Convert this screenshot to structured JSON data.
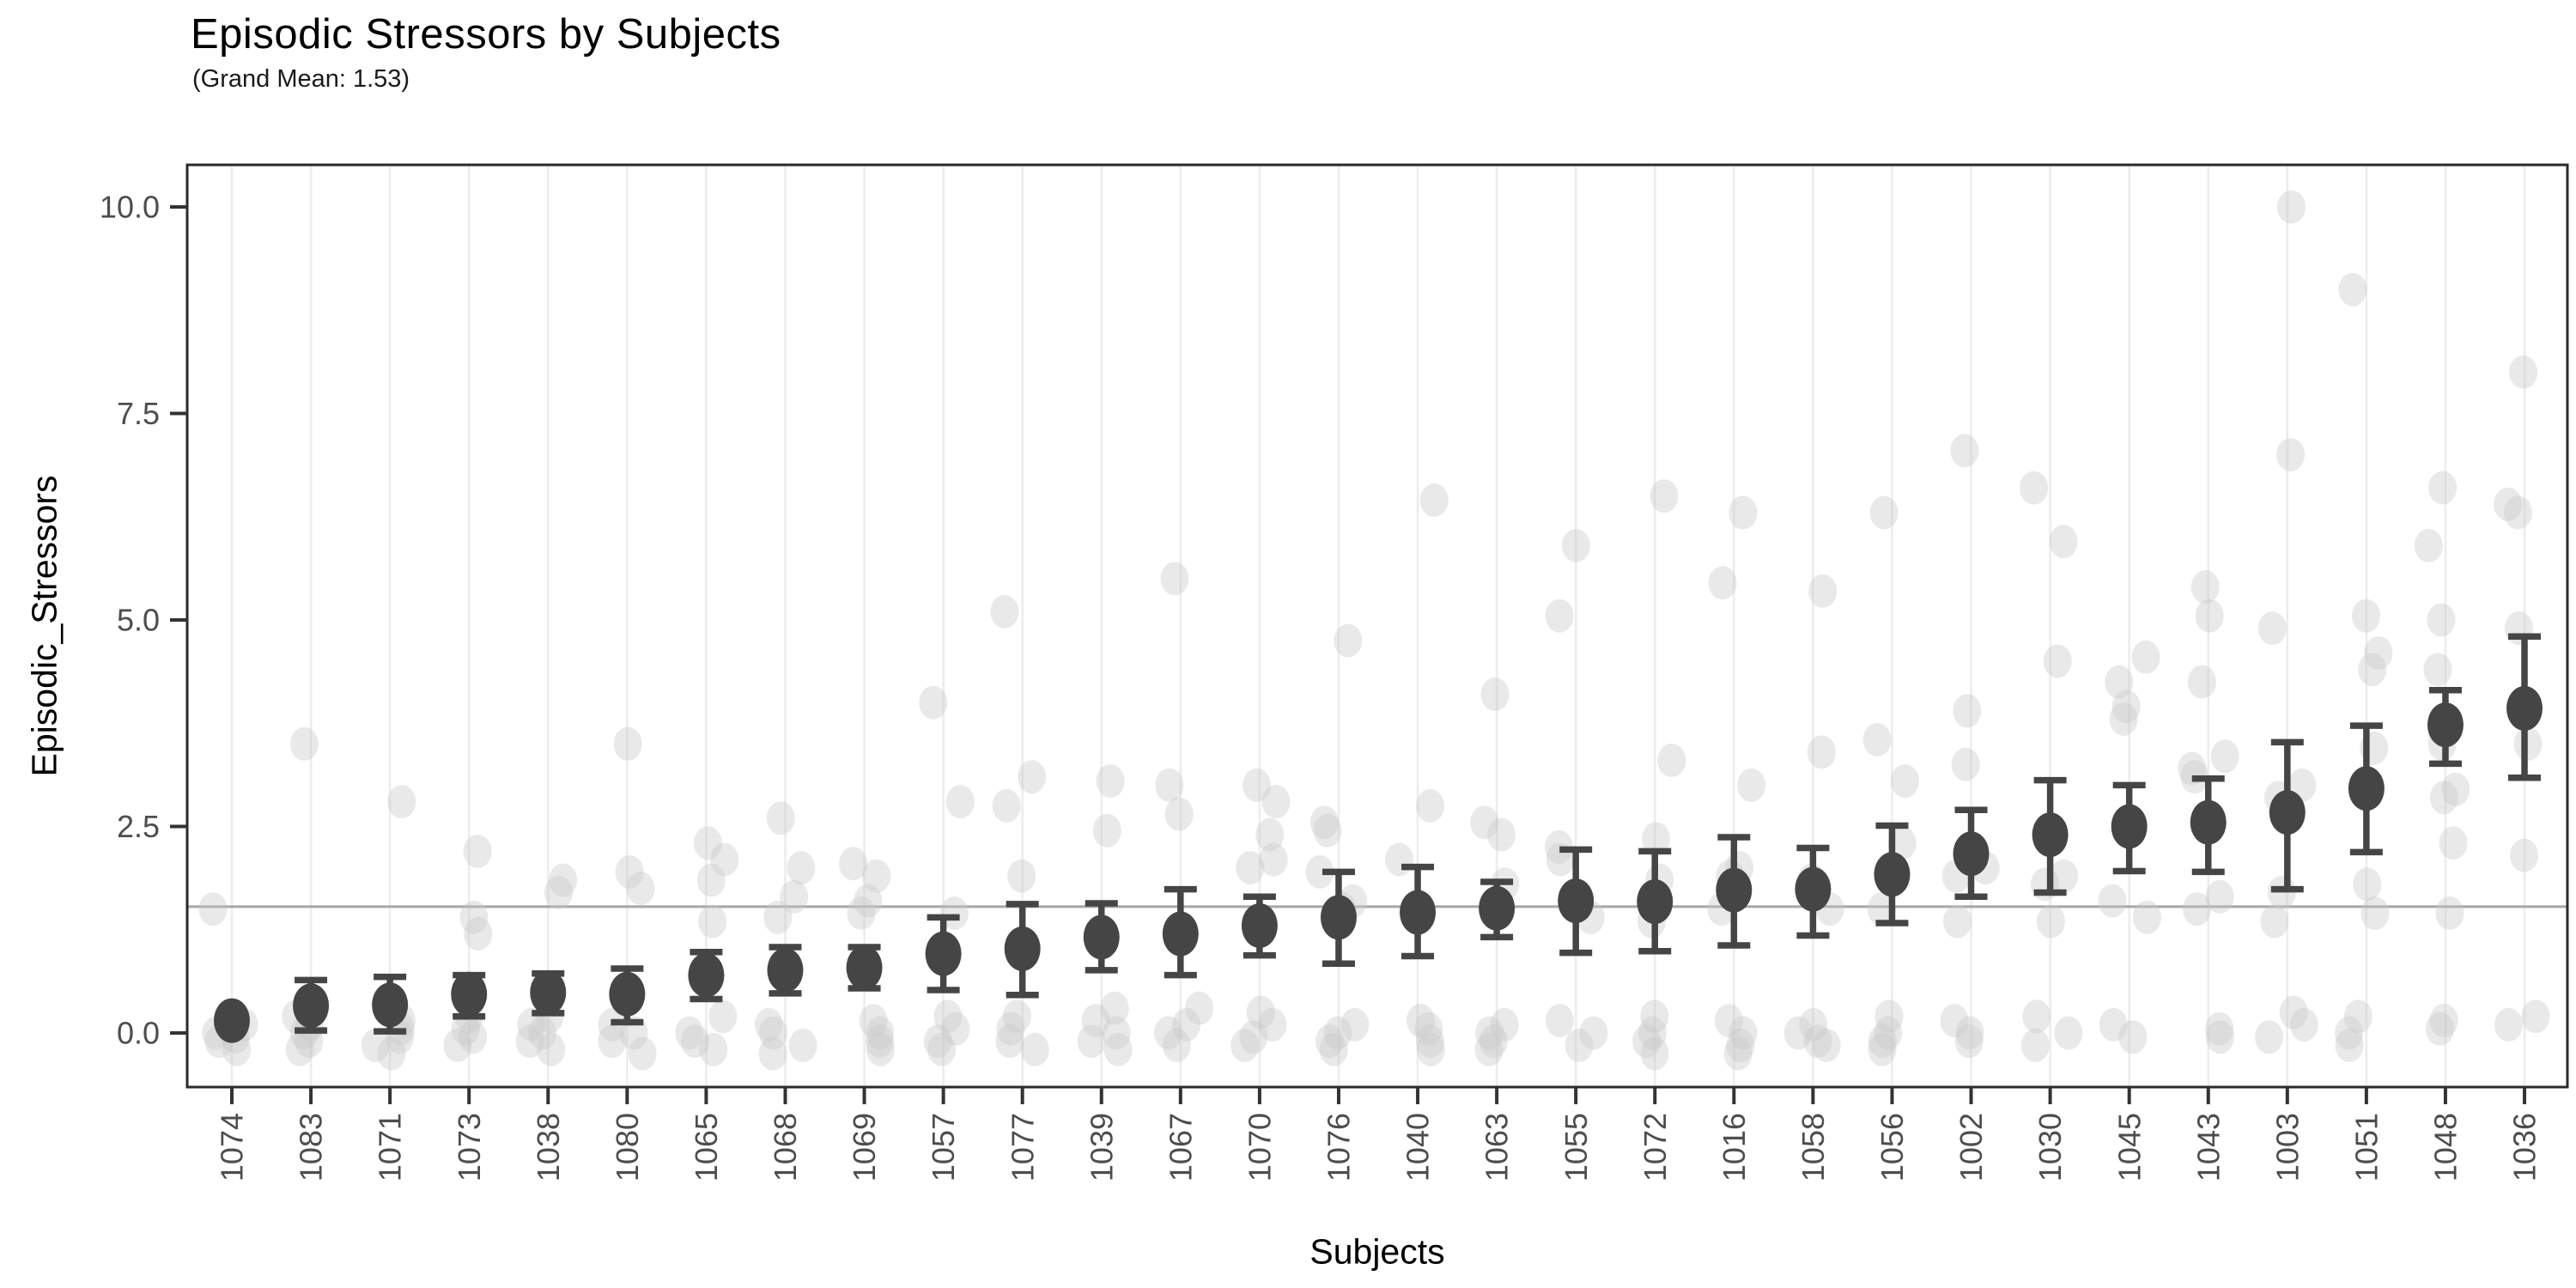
{
  "header": {
    "title": "Episodic Stressors by Subjects",
    "subtitle": "(Grand Mean: 1.53)"
  },
  "colors": {
    "background": "#ffffff",
    "mean_point": "#454545",
    "error_bar": "#454545",
    "raw_point": "#c9c9c9",
    "gridline": "#ececec",
    "grand_mean_line": "#a6a6a6",
    "tick_label": "#4d4d4d",
    "axis_title": "#000000",
    "panel_border": "#2a2a2a"
  },
  "chart_data": {
    "type": "scatter",
    "title": "Episodic Stressors by Subjects",
    "subtitle": "(Grand Mean: 1.53)",
    "xlabel": "Subjects",
    "ylabel": "Episodic_Stressors",
    "grand_mean": 1.53,
    "ylim": [
      -0.68,
      10.6
    ],
    "grid": "vertical-major-only",
    "legend_position": "none",
    "y_ticks": [
      {
        "value": 0.0,
        "label": "0.0"
      },
      {
        "value": 2.5,
        "label": "2.5"
      },
      {
        "value": 5.0,
        "label": "5.0"
      },
      {
        "value": 7.5,
        "label": "7.5"
      },
      {
        "value": 10.0,
        "label": "10.0"
      }
    ],
    "marks": {
      "mean_with_ci": "dark point = subject mean, whiskers = confidence interval",
      "raw": "light jittered points = raw Episodic_Stressors observations"
    },
    "subjects": [
      {
        "id": "1074",
        "mean": 0.15,
        "lo": 0.15,
        "hi": 0.15,
        "points": [
          1.5,
          0.1,
          0,
          -0.05,
          -0.1,
          -0.2
        ]
      },
      {
        "id": "1083",
        "mean": 0.33,
        "lo": 0.03,
        "hi": 0.64,
        "points": [
          3.5,
          0.2,
          0.1,
          0,
          -0.1,
          -0.2
        ]
      },
      {
        "id": "1071",
        "mean": 0.34,
        "lo": 0.02,
        "hi": 0.68,
        "points": [
          2.8,
          0.15,
          0.05,
          -0.05,
          -0.15,
          -0.25
        ]
      },
      {
        "id": "1073",
        "mean": 0.47,
        "lo": 0.2,
        "hi": 0.7,
        "points": [
          2.2,
          1.4,
          1.2,
          0.2,
          0.05,
          -0.05,
          -0.15
        ]
      },
      {
        "id": "1038",
        "mean": 0.49,
        "lo": 0.24,
        "hi": 0.72,
        "points": [
          1.85,
          1.7,
          0.2,
          0.1,
          0,
          -0.1,
          -0.2
        ]
      },
      {
        "id": "1080",
        "mean": 0.47,
        "lo": 0.13,
        "hi": 0.78,
        "points": [
          3.5,
          1.95,
          1.75,
          0.1,
          0,
          -0.1,
          -0.25
        ]
      },
      {
        "id": "1065",
        "mean": 0.7,
        "lo": 0.41,
        "hi": 0.98,
        "points": [
          2.3,
          2.1,
          1.85,
          1.35,
          0.2,
          0,
          -0.1,
          -0.2
        ]
      },
      {
        "id": "1068",
        "mean": 0.76,
        "lo": 0.48,
        "hi": 1.04,
        "points": [
          2.6,
          2.0,
          1.65,
          1.4,
          0.1,
          0,
          -0.15,
          -0.25
        ]
      },
      {
        "id": "1069",
        "mean": 0.79,
        "lo": 0.54,
        "hi": 1.04,
        "points": [
          2.05,
          1.9,
          1.6,
          1.45,
          0.15,
          0,
          -0.1,
          -0.2
        ]
      },
      {
        "id": "1057",
        "mean": 0.96,
        "lo": 0.52,
        "hi": 1.4,
        "points": [
          4.0,
          2.8,
          1.45,
          0.2,
          0.05,
          -0.1,
          -0.2
        ]
      },
      {
        "id": "1077",
        "mean": 1.02,
        "lo": 0.46,
        "hi": 1.56,
        "points": [
          5.1,
          3.1,
          2.75,
          1.9,
          0.2,
          0.05,
          -0.1,
          -0.2
        ]
      },
      {
        "id": "1039",
        "mean": 1.16,
        "lo": 0.76,
        "hi": 1.57,
        "points": [
          3.05,
          2.45,
          0.3,
          0.15,
          0,
          -0.1,
          -0.2
        ]
      },
      {
        "id": "1067",
        "mean": 1.2,
        "lo": 0.7,
        "hi": 1.74,
        "points": [
          5.5,
          3.0,
          2.65,
          0.3,
          0.1,
          0,
          -0.15
        ]
      },
      {
        "id": "1070",
        "mean": 1.3,
        "lo": 0.94,
        "hi": 1.65,
        "points": [
          3.0,
          2.8,
          2.4,
          2.1,
          2.0,
          0.25,
          0.1,
          -0.05,
          -0.15
        ]
      },
      {
        "id": "1076",
        "mean": 1.4,
        "lo": 0.84,
        "hi": 1.95,
        "points": [
          4.75,
          2.55,
          2.45,
          1.95,
          1.6,
          1.5,
          0.1,
          0,
          -0.1,
          -0.2
        ]
      },
      {
        "id": "1040",
        "mean": 1.46,
        "lo": 0.93,
        "hi": 2.01,
        "points": [
          6.45,
          2.75,
          2.1,
          0.15,
          0.05,
          -0.1,
          -0.2
        ]
      },
      {
        "id": "1063",
        "mean": 1.51,
        "lo": 1.16,
        "hi": 1.83,
        "points": [
          4.1,
          2.55,
          2.4,
          1.8,
          0.1,
          0,
          -0.1,
          -0.2
        ]
      },
      {
        "id": "1055",
        "mean": 1.6,
        "lo": 0.97,
        "hi": 2.22,
        "points": [
          5.9,
          5.05,
          2.25,
          2.1,
          1.4,
          0.15,
          0,
          -0.15
        ]
      },
      {
        "id": "1072",
        "mean": 1.59,
        "lo": 0.99,
        "hi": 2.2,
        "points": [
          6.5,
          3.3,
          2.35,
          1.85,
          1.35,
          0.2,
          0,
          -0.1,
          -0.25
        ]
      },
      {
        "id": "1016",
        "mean": 1.73,
        "lo": 1.06,
        "hi": 2.37,
        "points": [
          6.3,
          5.45,
          3.0,
          2.0,
          1.9,
          1.5,
          0.15,
          0,
          -0.15,
          -0.25
        ]
      },
      {
        "id": "1058",
        "mean": 1.74,
        "lo": 1.18,
        "hi": 2.24,
        "points": [
          5.35,
          3.4,
          1.85,
          1.5,
          0.1,
          0,
          -0.1,
          -0.15
        ]
      },
      {
        "id": "1056",
        "mean": 1.92,
        "lo": 1.33,
        "hi": 2.51,
        "points": [
          6.3,
          3.55,
          3.05,
          2.3,
          1.5,
          0.2,
          0,
          -0.1,
          -0.2
        ]
      },
      {
        "id": "1002",
        "mean": 2.17,
        "lo": 1.65,
        "hi": 2.7,
        "points": [
          7.05,
          3.9,
          3.25,
          2.0,
          1.9,
          1.35,
          0.15,
          0,
          -0.1
        ]
      },
      {
        "id": "1030",
        "mean": 2.4,
        "lo": 1.7,
        "hi": 3.06,
        "points": [
          6.6,
          5.95,
          4.5,
          1.9,
          1.8,
          1.35,
          0.2,
          0,
          -0.15
        ]
      },
      {
        "id": "1045",
        "mean": 2.5,
        "lo": 1.96,
        "hi": 3.0,
        "points": [
          4.55,
          4.25,
          3.95,
          3.8,
          1.6,
          1.4,
          0.1,
          -0.05
        ]
      },
      {
        "id": "1043",
        "mean": 2.55,
        "lo": 1.95,
        "hi": 3.08,
        "points": [
          5.4,
          5.05,
          4.25,
          3.35,
          3.2,
          3.1,
          1.65,
          1.5,
          0.05,
          -0.05
        ]
      },
      {
        "id": "1003",
        "mean": 2.67,
        "lo": 1.74,
        "hi": 3.52,
        "points": [
          10.0,
          7.0,
          4.9,
          3.0,
          2.85,
          1.7,
          1.35,
          0.25,
          0.1,
          -0.05
        ]
      },
      {
        "id": "1051",
        "mean": 2.96,
        "lo": 2.19,
        "hi": 3.72,
        "points": [
          9.0,
          5.05,
          4.6,
          4.4,
          3.45,
          1.8,
          1.45,
          0.2,
          0,
          -0.15
        ]
      },
      {
        "id": "1048",
        "mean": 3.73,
        "lo": 3.26,
        "hi": 4.15,
        "points": [
          6.6,
          5.9,
          5.0,
          4.4,
          3.5,
          2.95,
          2.85,
          2.3,
          1.45,
          0.15,
          0.05
        ]
      },
      {
        "id": "1036",
        "mean": 3.93,
        "lo": 3.09,
        "hi": 4.8,
        "points": [
          8.0,
          6.4,
          6.3,
          4.9,
          3.5,
          2.15,
          0.2,
          0.1
        ]
      }
    ]
  }
}
